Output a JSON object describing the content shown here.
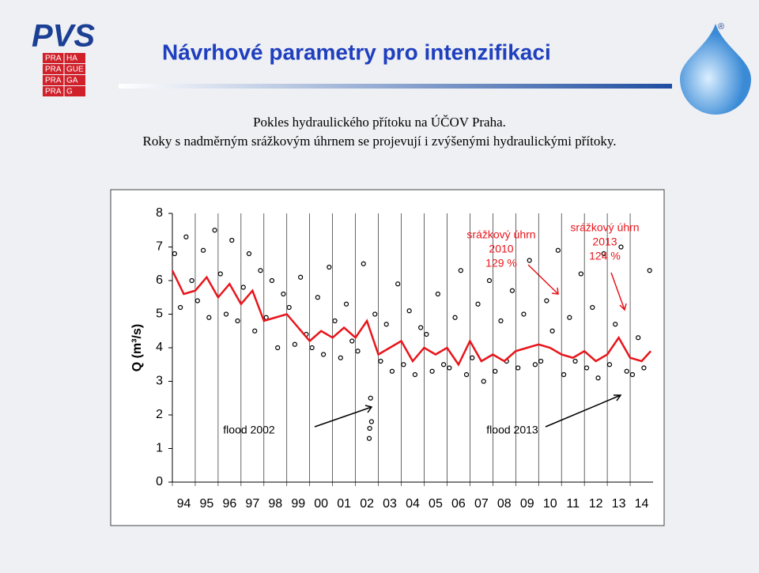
{
  "slide": {
    "title": "Návrhové parametry pro intenzifikaci",
    "caption": [
      "Pokles hydraulického přítoku na ÚČOV Praha.",
      "Roky s nadměrným srážkovým úhrnem se projevují i zvýšenými hydraulickými přítoky."
    ]
  },
  "logo": {
    "brand": "PVS",
    "rows": [
      [
        "PRA",
        "HA"
      ],
      [
        "PRA",
        "GUE"
      ],
      [
        "PRA",
        "GA"
      ],
      [
        "PRA",
        "G"
      ]
    ],
    "mark": "®"
  },
  "chart_data": {
    "type": "scatter",
    "y_label": "Q (m³/s)",
    "xlim": [
      1994,
      2015
    ],
    "xticks": [
      {
        "value": 1994,
        "label": "94"
      },
      {
        "value": 1995,
        "label": "95"
      },
      {
        "value": 1996,
        "label": "96"
      },
      {
        "value": 1997,
        "label": "97"
      },
      {
        "value": 1998,
        "label": "98"
      },
      {
        "value": 1999,
        "label": "99"
      },
      {
        "value": 2000,
        "label": "00"
      },
      {
        "value": 2001,
        "label": "01"
      },
      {
        "value": 2002,
        "label": "02"
      },
      {
        "value": 2003,
        "label": "03"
      },
      {
        "value": 2004,
        "label": "04"
      },
      {
        "value": 2005,
        "label": "05"
      },
      {
        "value": 2006,
        "label": "06"
      },
      {
        "value": 2007,
        "label": "07"
      },
      {
        "value": 2008,
        "label": "08"
      },
      {
        "value": 2009,
        "label": "09"
      },
      {
        "value": 2010,
        "label": "10"
      },
      {
        "value": 2011,
        "label": "11"
      },
      {
        "value": 2012,
        "label": "12"
      },
      {
        "value": 2013,
        "label": "13"
      },
      {
        "value": 2014,
        "label": "14"
      }
    ],
    "ylim": [
      0,
      8
    ],
    "yticks": [
      0,
      1,
      2,
      3,
      4,
      5,
      6,
      7,
      8
    ],
    "points": {
      "color": "#000000",
      "x": [
        1994.1,
        1994.35,
        1994.6,
        1994.85,
        1995.1,
        1995.35,
        1995.6,
        1995.85,
        1996.1,
        1996.35,
        1996.6,
        1996.85,
        1997.1,
        1997.35,
        1997.6,
        1997.85,
        1998.1,
        1998.35,
        1998.6,
        1998.85,
        1999.1,
        1999.35,
        1999.6,
        1999.85,
        2000.1,
        2000.35,
        2000.6,
        2000.85,
        2001.1,
        2001.35,
        2001.6,
        2001.85,
        2002.1,
        2002.35,
        2002.6,
        2002.85,
        2003.1,
        2003.35,
        2003.6,
        2003.85,
        2004.1,
        2004.35,
        2004.6,
        2004.85,
        2005.1,
        2005.35,
        2005.6,
        2005.85,
        2006.1,
        2006.35,
        2006.6,
        2006.85,
        2007.1,
        2007.35,
        2007.6,
        2007.85,
        2008.1,
        2008.35,
        2008.6,
        2008.85,
        2009.1,
        2009.35,
        2009.6,
        2009.85,
        2010.1,
        2010.35,
        2010.6,
        2010.85,
        2011.1,
        2011.35,
        2011.6,
        2011.85,
        2012.1,
        2012.35,
        2012.6,
        2012.85,
        2013.1,
        2013.35,
        2013.6,
        2013.85,
        2014.1,
        2014.35,
        2014.6,
        2014.85,
        2002.62,
        2002.66,
        2002.7
      ],
      "y": [
        6.8,
        5.2,
        7.3,
        6.0,
        5.4,
        6.9,
        4.9,
        7.5,
        6.2,
        5.0,
        7.2,
        4.8,
        5.8,
        6.8,
        4.5,
        6.3,
        4.9,
        6.0,
        4.0,
        5.6,
        5.2,
        4.1,
        6.1,
        4.4,
        4.0,
        5.5,
        3.8,
        6.4,
        4.8,
        3.7,
        5.3,
        4.2,
        3.9,
        6.5,
        1.3,
        5.0,
        3.6,
        4.7,
        3.3,
        5.9,
        3.5,
        5.1,
        3.2,
        4.6,
        4.4,
        3.3,
        5.6,
        3.5,
        3.4,
        4.9,
        6.3,
        3.2,
        3.7,
        5.3,
        3.0,
        6.0,
        3.3,
        4.8,
        3.6,
        5.7,
        3.4,
        5.0,
        6.6,
        3.5,
        3.6,
        5.4,
        4.5,
        6.9,
        3.2,
        4.9,
        3.6,
        6.2,
        3.4,
        5.2,
        3.1,
        6.8,
        3.5,
        4.7,
        7.0,
        3.3,
        3.2,
        4.3,
        3.4,
        6.3,
        1.6,
        2.5,
        1.8
      ]
    },
    "line": {
      "color": "#e8151b",
      "x": [
        1994.0,
        1994.5,
        1995.0,
        1995.5,
        1996.0,
        1996.5,
        1997.0,
        1997.5,
        1998.0,
        1998.5,
        1999.0,
        1999.5,
        2000.0,
        2000.5,
        2001.0,
        2001.5,
        2002.0,
        2002.5,
        2003.0,
        2003.5,
        2004.0,
        2004.5,
        2005.0,
        2005.5,
        2006.0,
        2006.5,
        2007.0,
        2007.5,
        2008.0,
        2008.5,
        2009.0,
        2009.5,
        2010.0,
        2010.5,
        2011.0,
        2011.5,
        2012.0,
        2012.5,
        2013.0,
        2013.5,
        2014.0,
        2014.5,
        2014.9
      ],
      "y": [
        6.3,
        5.6,
        5.7,
        6.1,
        5.5,
        5.9,
        5.3,
        5.7,
        4.8,
        4.9,
        5.0,
        4.6,
        4.2,
        4.5,
        4.3,
        4.6,
        4.3,
        4.8,
        3.8,
        4.0,
        4.2,
        3.6,
        4.0,
        3.8,
        4.0,
        3.5,
        4.2,
        3.6,
        3.8,
        3.6,
        3.9,
        4.0,
        4.1,
        4.0,
        3.8,
        3.7,
        3.9,
        3.6,
        3.8,
        4.3,
        3.7,
        3.6,
        3.9
      ]
    },
    "annotations": [
      {
        "text": [
          "srážkový úhrn",
          "2010",
          "129 %"
        ],
        "color": "#e8151b"
      },
      {
        "text": [
          "srážkový úhrn",
          "2013",
          "124 %"
        ],
        "color": "#e8151b"
      },
      {
        "text": [
          "flood 2002"
        ],
        "color": "#000000"
      },
      {
        "text": [
          "flood 2013"
        ],
        "color": "#000000"
      }
    ]
  }
}
